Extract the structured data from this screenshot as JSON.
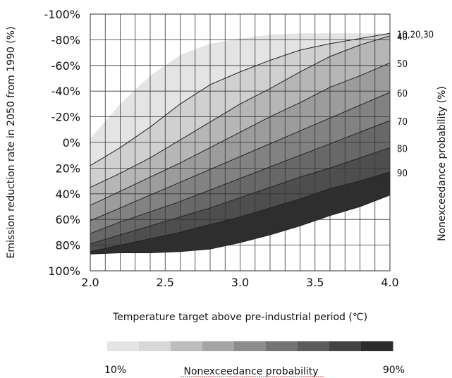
{
  "chart_data": {
    "type": "area",
    "xlabel": "Temperature target above pre-industrial period (℃)",
    "ylabel": "Emission reduction rate in 2050 from 1990 (%)",
    "right_label": "Nonexceedance probability (%)",
    "x_ticks": [
      "2.0",
      "2.5",
      "3.0",
      "3.5",
      "4.0"
    ],
    "y_ticks": [
      "-100%",
      "-80%",
      "-60%",
      "-40%",
      "-20%",
      "0%",
      "20%",
      "40%",
      "60%",
      "80%",
      "100%"
    ],
    "xlim": [
      2.0,
      4.0
    ],
    "ylim": [
      -100,
      100
    ],
    "y_axis_reversed": true,
    "grid": true,
    "band_colors": [
      "#e4e4e4",
      "#d0d0d0",
      "#b6b6b6",
      "#9c9c9c",
      "#828282",
      "#686868",
      "#4e4e4e",
      "#2e2e2e"
    ],
    "contours": [
      {
        "label": "10,20,30",
        "points": [
          [
            2.0,
            -3
          ],
          [
            2.2,
            -30
          ],
          [
            2.4,
            -52
          ],
          [
            2.6,
            -68
          ],
          [
            2.8,
            -77
          ],
          [
            3.0,
            -81
          ],
          [
            3.2,
            -84
          ],
          [
            3.4,
            -85
          ],
          [
            3.6,
            -85
          ],
          [
            3.8,
            -85
          ],
          [
            3.92,
            -85
          ]
        ]
      },
      {
        "label": "",
        "points": [
          [
            2.0,
            18
          ],
          [
            2.2,
            4
          ],
          [
            2.4,
            -12
          ],
          [
            2.6,
            -30
          ],
          [
            2.8,
            -45
          ],
          [
            3.0,
            -55
          ],
          [
            3.2,
            -64
          ],
          [
            3.4,
            -72
          ],
          [
            3.6,
            -77
          ],
          [
            3.8,
            -81
          ],
          [
            4.0,
            -85
          ]
        ]
      },
      {
        "label": "40",
        "points": [
          [
            2.0,
            35
          ],
          [
            2.2,
            24
          ],
          [
            2.4,
            12
          ],
          [
            2.6,
            -2
          ],
          [
            2.8,
            -16
          ],
          [
            3.0,
            -30
          ],
          [
            3.2,
            -42
          ],
          [
            3.4,
            -55
          ],
          [
            3.6,
            -67
          ],
          [
            3.8,
            -76
          ],
          [
            4.0,
            -83
          ]
        ]
      },
      {
        "label": "50",
        "points": [
          [
            2.0,
            49
          ],
          [
            2.2,
            38
          ],
          [
            2.4,
            27
          ],
          [
            2.6,
            16
          ],
          [
            2.8,
            4
          ],
          [
            3.0,
            -8
          ],
          [
            3.2,
            -20
          ],
          [
            3.4,
            -31
          ],
          [
            3.6,
            -43
          ],
          [
            3.8,
            -52
          ],
          [
            4.0,
            -62
          ]
        ]
      },
      {
        "label": "60",
        "points": [
          [
            2.0,
            61
          ],
          [
            2.2,
            51
          ],
          [
            2.4,
            41
          ],
          [
            2.6,
            31
          ],
          [
            2.8,
            21
          ],
          [
            3.0,
            11
          ],
          [
            3.2,
            1
          ],
          [
            3.4,
            -9
          ],
          [
            3.6,
            -19
          ],
          [
            3.8,
            -29
          ],
          [
            4.0,
            -39
          ]
        ]
      },
      {
        "label": "70",
        "points": [
          [
            2.0,
            71
          ],
          [
            2.2,
            62
          ],
          [
            2.4,
            54
          ],
          [
            2.6,
            46
          ],
          [
            2.8,
            37
          ],
          [
            3.0,
            28
          ],
          [
            3.2,
            19
          ],
          [
            3.4,
            10
          ],
          [
            3.6,
            1
          ],
          [
            3.8,
            -8
          ],
          [
            4.0,
            -17
          ]
        ]
      },
      {
        "label": "80",
        "points": [
          [
            2.0,
            79
          ],
          [
            2.2,
            72
          ],
          [
            2.4,
            65
          ],
          [
            2.6,
            58
          ],
          [
            2.8,
            51
          ],
          [
            3.0,
            43
          ],
          [
            3.2,
            35
          ],
          [
            3.4,
            27
          ],
          [
            3.6,
            20
          ],
          [
            3.8,
            12
          ],
          [
            4.0,
            4
          ]
        ]
      },
      {
        "label": "90",
        "points": [
          [
            2.0,
            85
          ],
          [
            2.2,
            80
          ],
          [
            2.4,
            75
          ],
          [
            2.6,
            70
          ],
          [
            2.8,
            64
          ],
          [
            3.0,
            58
          ],
          [
            3.2,
            51
          ],
          [
            3.4,
            44
          ],
          [
            3.6,
            36
          ],
          [
            3.8,
            30
          ],
          [
            4.0,
            23
          ]
        ]
      },
      {
        "label": "",
        "points": [
          [
            2.0,
            87
          ],
          [
            2.2,
            86
          ],
          [
            2.4,
            86
          ],
          [
            2.6,
            85
          ],
          [
            2.8,
            83
          ],
          [
            3.0,
            78
          ],
          [
            3.2,
            72
          ],
          [
            3.4,
            65
          ],
          [
            3.6,
            57
          ],
          [
            3.8,
            50
          ],
          [
            4.0,
            41
          ]
        ]
      }
    ],
    "legend": {
      "title": "Nonexceedance probability",
      "start_label": "10%",
      "end_label": "90%",
      "swatches": [
        "#e4e4e4",
        "#d8d8d8",
        "#bdbdbd",
        "#a5a5a5",
        "#8c8c8c",
        "#747474",
        "#5c5c5c",
        "#444444",
        "#2c2c2c"
      ]
    }
  }
}
